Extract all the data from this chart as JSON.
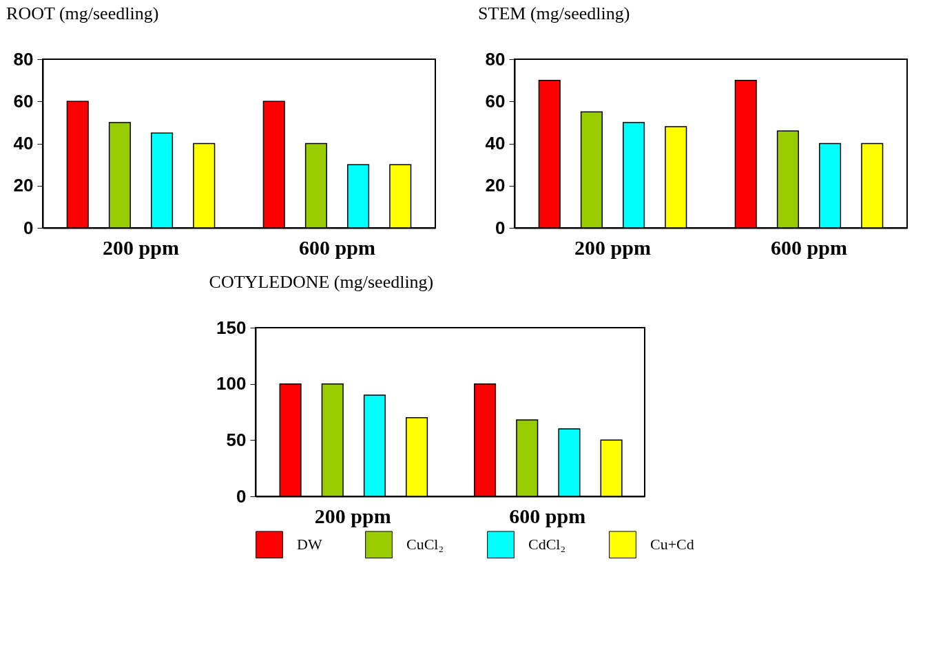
{
  "chart_data": [
    {
      "type": "bar",
      "title": "ROOT (mg/seedling)",
      "categories": [
        "200 ppm",
        "600 ppm"
      ],
      "series": [
        {
          "color": "#ff0000",
          "values": [
            60,
            60
          ]
        },
        {
          "color": "#99cc00",
          "values": [
            50,
            40
          ]
        },
        {
          "color": "#00ffff",
          "values": [
            45,
            30
          ]
        },
        {
          "color": "#ffff00",
          "values": [
            40,
            30
          ]
        }
      ],
      "ylim": [
        0,
        80
      ],
      "yticks": [
        0,
        20,
        40,
        60,
        80
      ]
    },
    {
      "type": "bar",
      "title": "STEM (mg/seedling)",
      "categories": [
        "200 ppm",
        "600 ppm"
      ],
      "series": [
        {
          "color": "#ff0000",
          "values": [
            70,
            70
          ]
        },
        {
          "color": "#99cc00",
          "values": [
            55,
            46
          ]
        },
        {
          "color": "#00ffff",
          "values": [
            50,
            40
          ]
        },
        {
          "color": "#ffff00",
          "values": [
            48,
            40
          ]
        }
      ],
      "ylim": [
        0,
        80
      ],
      "yticks": [
        0,
        20,
        40,
        60,
        80
      ]
    },
    {
      "type": "bar",
      "title": "COTYLEDONE (mg/seedling)",
      "categories": [
        "200 ppm",
        "600 ppm"
      ],
      "series": [
        {
          "name": "DW",
          "color": "#ff0000",
          "values": [
            100,
            100
          ]
        },
        {
          "name": "CuCl₂",
          "color": "#99cc00",
          "values": [
            100,
            68
          ]
        },
        {
          "name": "CdCl₂",
          "color": "#00ffff",
          "values": [
            90,
            60
          ]
        },
        {
          "name": "Cu+Cd",
          "color": "#ffff00",
          "values": [
            70,
            50
          ]
        }
      ],
      "ylim": [
        0,
        150
      ],
      "yticks": [
        0,
        50,
        100,
        150
      ],
      "legend": "bottom"
    }
  ]
}
